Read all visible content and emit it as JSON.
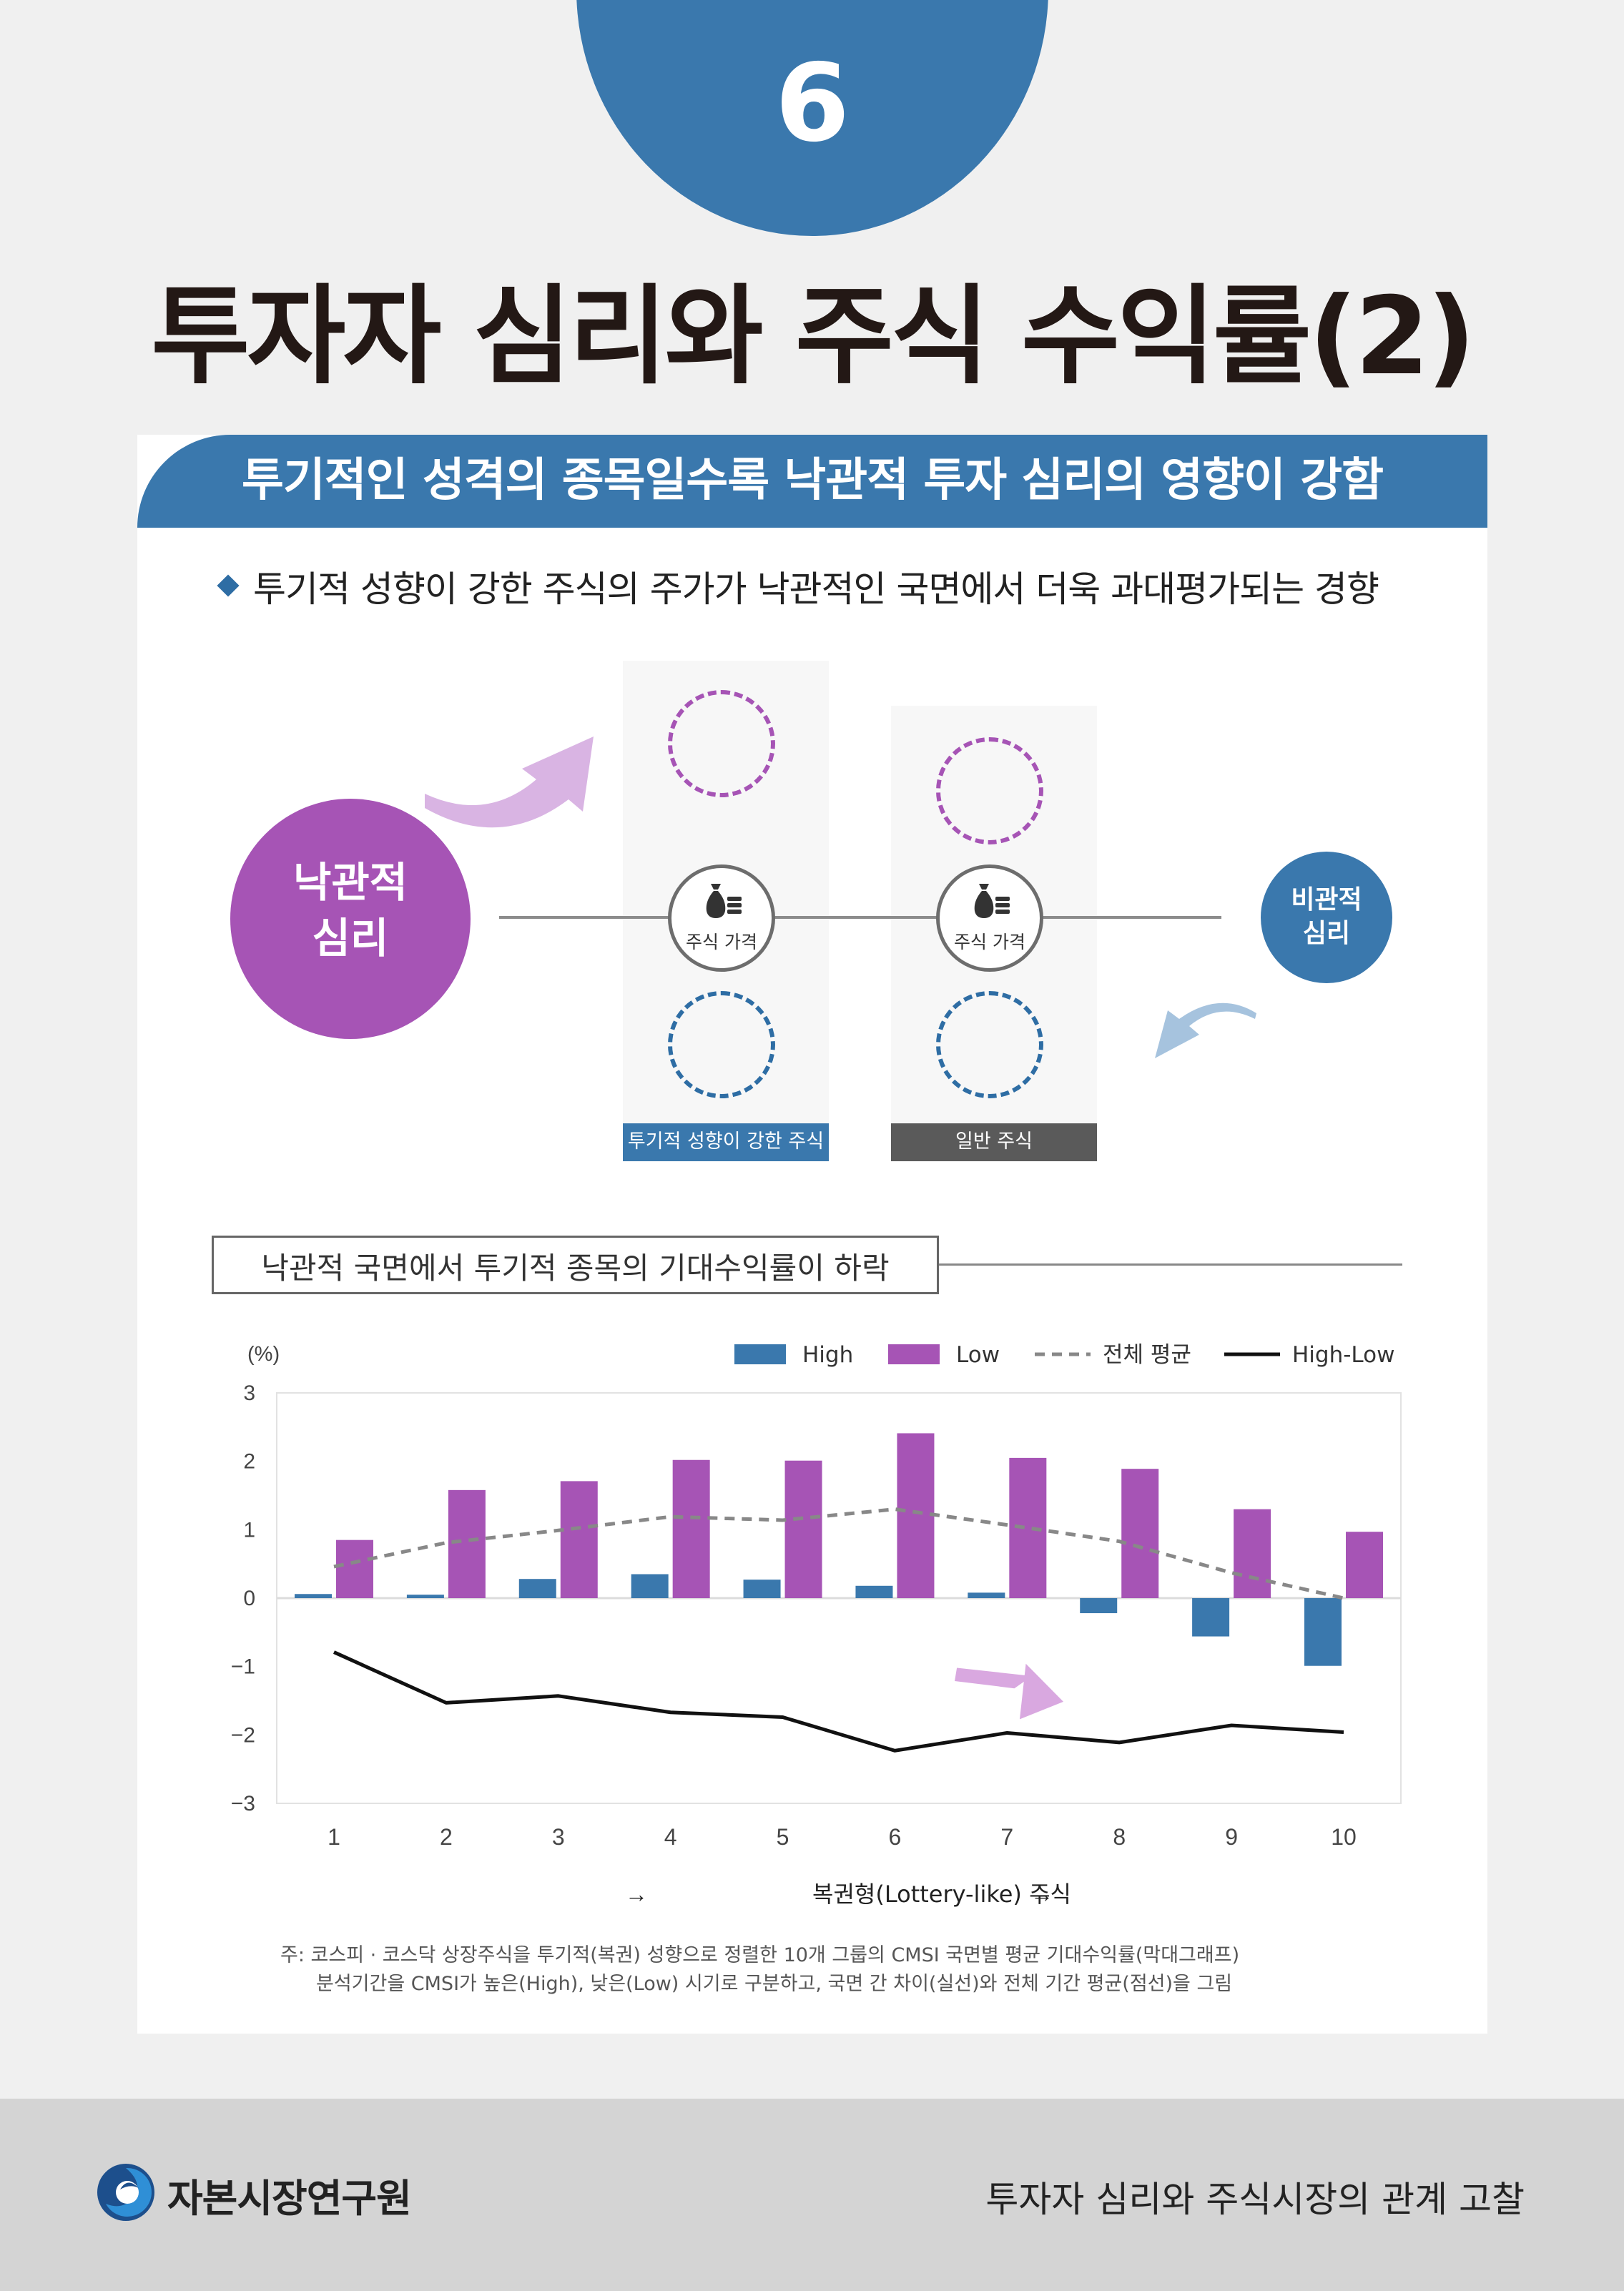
{
  "number": "6",
  "title": "투자자 심리와 주식 수익률(2)",
  "banner": "투기적인 성격의 종목일수록 낙관적 투자 심리의 영향이 강함",
  "bullet": "투기적 성향이 강한 주식의 주가가 낙관적인 국면에서 더욱 과대평가되는 경향",
  "diagram": {
    "optimist_line1": "낙관적",
    "optimist_line2": "심리",
    "pessimist_line1": "비관적",
    "pessimist_line2": "심리",
    "price_label": "주식 가격",
    "col1_label": "투기적 성향이 강한 주식",
    "col2_label": "일반 주식",
    "colors": {
      "purple": "#a654b5",
      "blue": "#3a78ad",
      "gray_label": "#5a5a5a"
    }
  },
  "section2_title": "낙관적 국면에서 투기적 종목의 기대수익률이 하락",
  "chart_data": {
    "type": "bar",
    "unit_label": "(%)",
    "categories": [
      "1",
      "2",
      "3",
      "4",
      "5",
      "6",
      "7",
      "8",
      "9",
      "10"
    ],
    "ylim": [
      -3,
      3
    ],
    "yticks": [
      "3",
      "2",
      "1",
      "0",
      "−1",
      "−2",
      "−3"
    ],
    "ytick_values": [
      3,
      2,
      1,
      0,
      -1,
      -2,
      -3
    ],
    "series": [
      {
        "name": "High",
        "kind": "bar",
        "color": "#3a78ad",
        "values": [
          0.06,
          0.05,
          0.28,
          0.35,
          0.27,
          0.18,
          0.08,
          -0.22,
          -0.56,
          -0.99
        ]
      },
      {
        "name": "Low",
        "kind": "bar",
        "color": "#a654b5",
        "values": [
          0.85,
          1.58,
          1.71,
          2.02,
          2.01,
          2.41,
          2.05,
          1.89,
          1.3,
          0.97
        ]
      },
      {
        "name": "전체 평균",
        "kind": "dashed-line",
        "color": "#888888",
        "values": [
          0.46,
          0.81,
          0.99,
          1.19,
          1.14,
          1.3,
          1.07,
          0.83,
          0.37,
          0.0
        ]
      },
      {
        "name": "High-Low",
        "kind": "line",
        "color": "#111111",
        "values": [
          -0.79,
          -1.53,
          -1.43,
          -1.67,
          -1.74,
          -2.23,
          -1.97,
          -2.11,
          -1.86,
          -1.96
        ]
      }
    ],
    "xlabel": "복권형(Lottery-like) 주식",
    "arrow_glyph": "→",
    "grid": false,
    "legend_position": "top-right"
  },
  "note_line1": "주: 코스피 · 코스닥 상장주식을 투기적(복권) 성향으로 정렬한 10개 그룹의 CMSI 국면별 평균 기대수익률(막대그래프)",
  "note_line2": "분석기간을 CMSI가 높은(High), 낮은(Low) 시기로 구분하고, 국면 간 차이(실선)와 전체 기간 평균(점선)을 그림",
  "footer": {
    "org_name": "자본시장연구원",
    "report_title": "투자자 심리와 주식시장의 관계 고찰"
  }
}
